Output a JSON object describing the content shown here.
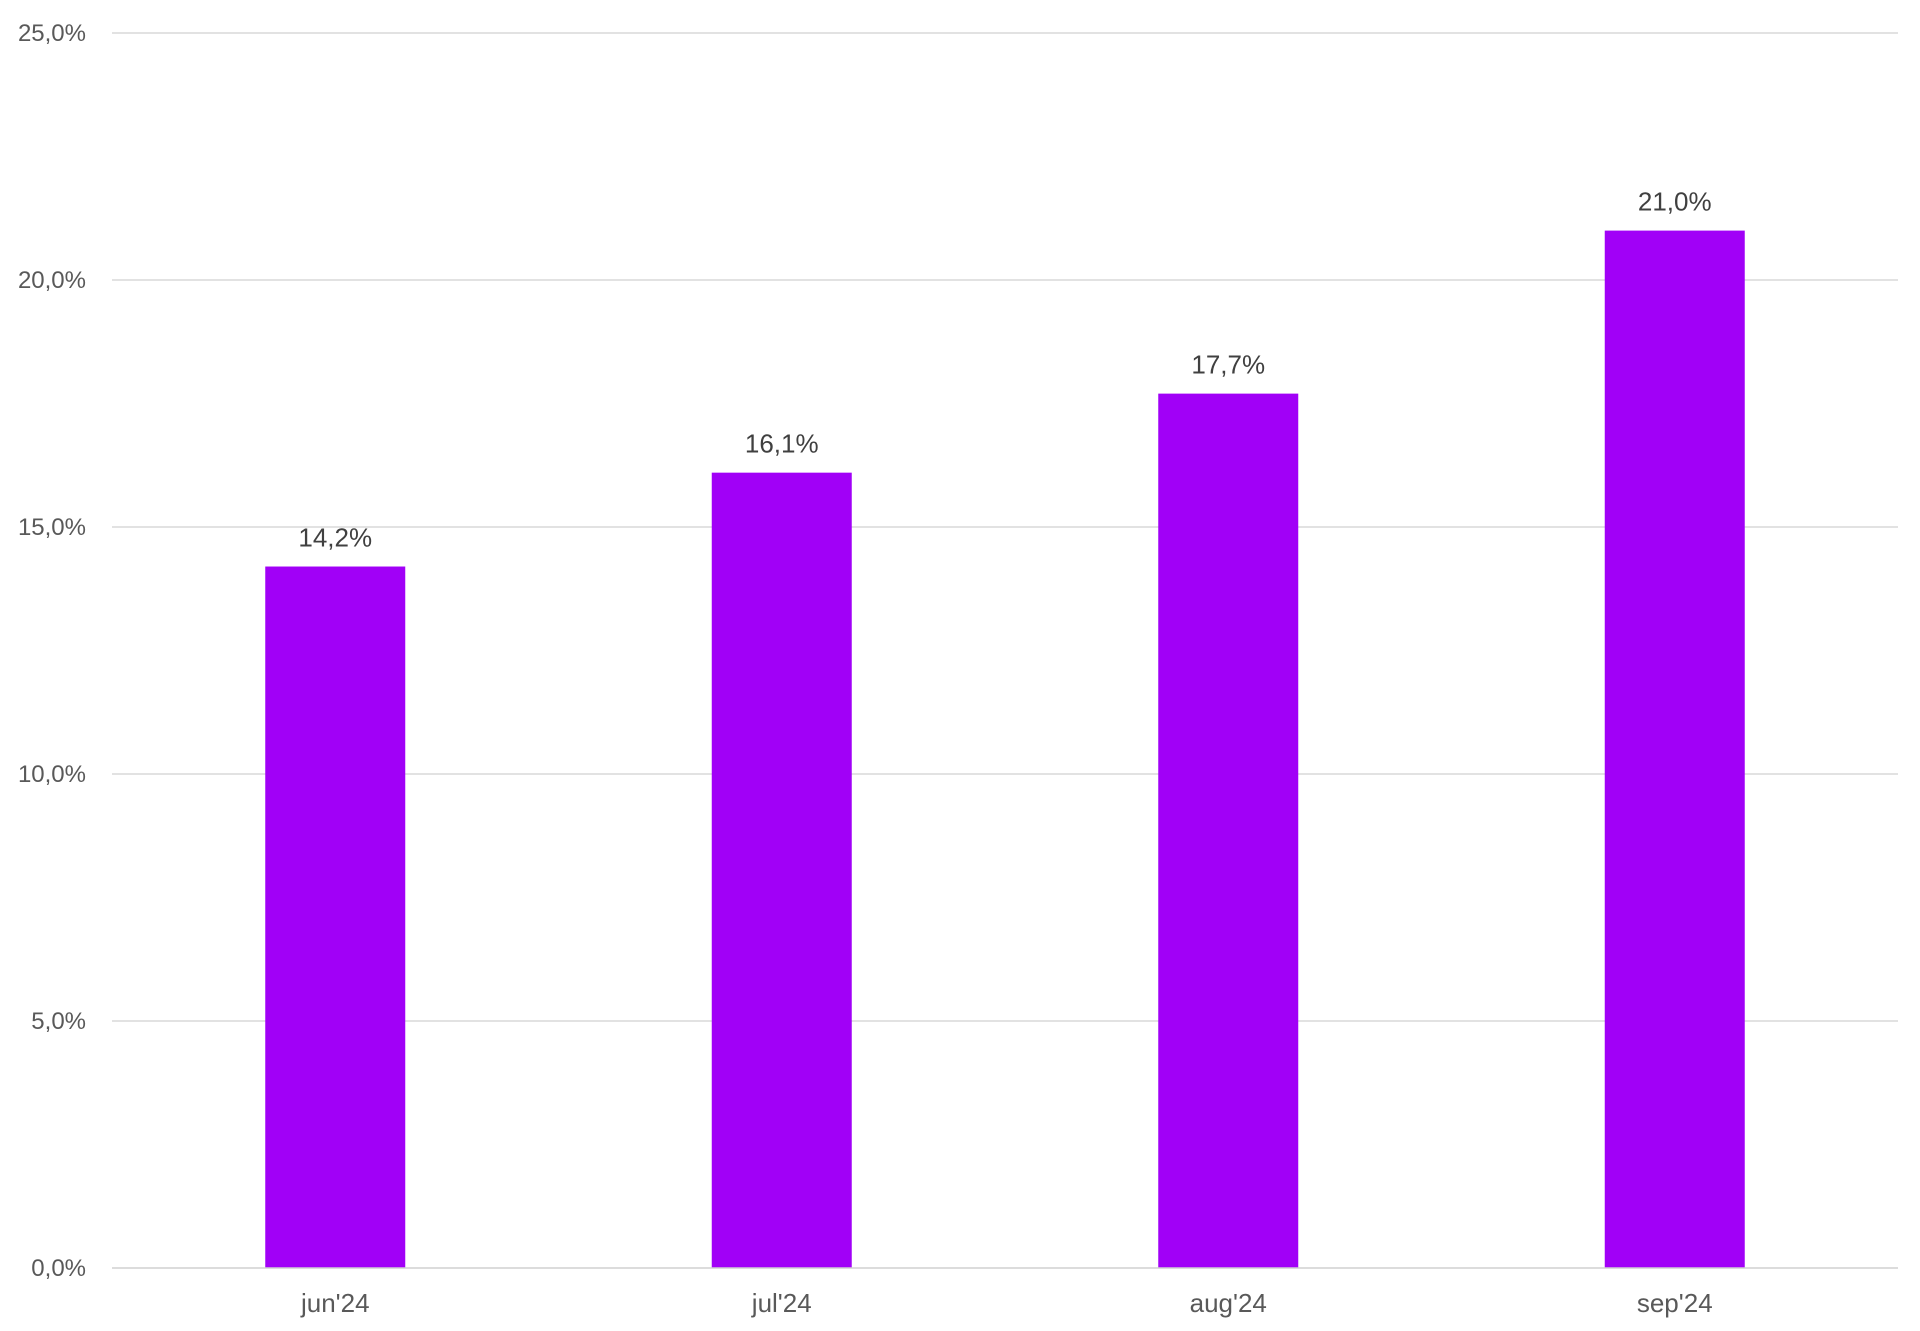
{
  "chart_data": {
    "type": "bar",
    "categories": [
      "jun'24",
      "jul'24",
      "aug'24",
      "sep'24"
    ],
    "series": [
      {
        "values": [
          14.2,
          16.1,
          17.7,
          21.0
        ],
        "data_labels": [
          "14,2%",
          "16,1%",
          "17,7%",
          "21,0%"
        ],
        "color": "#a100f7"
      }
    ],
    "ylim": [
      0,
      25
    ],
    "y_ticks": [
      0,
      5,
      10,
      15,
      20,
      25
    ],
    "y_tick_labels": [
      "0,0%",
      "5,0%",
      "10,0%",
      "15,0%",
      "20,0%",
      "25,0%"
    ],
    "grid": true,
    "legend": "none",
    "gridline_color": "#d9d9d9"
  }
}
